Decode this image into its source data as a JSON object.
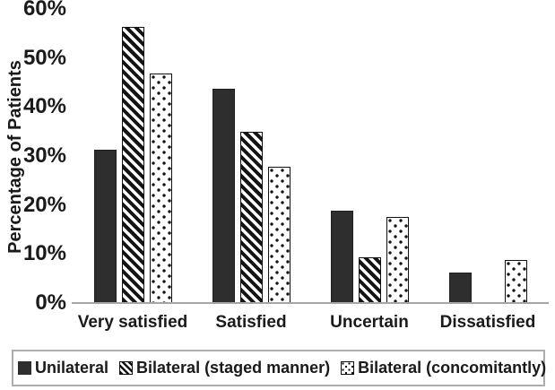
{
  "chart_data": {
    "type": "bar",
    "title": "",
    "ylabel": "Percentage of Patients",
    "xlabel": "",
    "categories": [
      "Very satisfied",
      "Satisfied",
      "Uncertain",
      "Dissatisfied"
    ],
    "series": [
      {
        "name": "Unilateral",
        "pattern": "solid",
        "values": [
          31.3,
          43.8,
          18.8,
          6.3
        ]
      },
      {
        "name": "Bilateral (staged manner)",
        "pattern": "diagonal-stripe",
        "values": [
          56.3,
          35.0,
          9.3,
          0
        ]
      },
      {
        "name": "Bilateral (concomitantly)",
        "pattern": "dotted",
        "values": [
          46.8,
          27.8,
          17.5,
          8.8
        ]
      }
    ],
    "ylim": [
      0,
      60
    ],
    "ytick_labels": [
      "60%",
      "50%",
      "40%",
      "30%",
      "20%",
      "10%",
      "0%"
    ],
    "grid": false,
    "legend_position": "bottom",
    "colors": {
      "bar_fill": "#2e2e2e",
      "pattern_ink": "#111111",
      "axis_line": "#a6a6a6",
      "legend_border": "#adadad",
      "text": "#1a1a1a",
      "background": "#ffffff"
    }
  }
}
